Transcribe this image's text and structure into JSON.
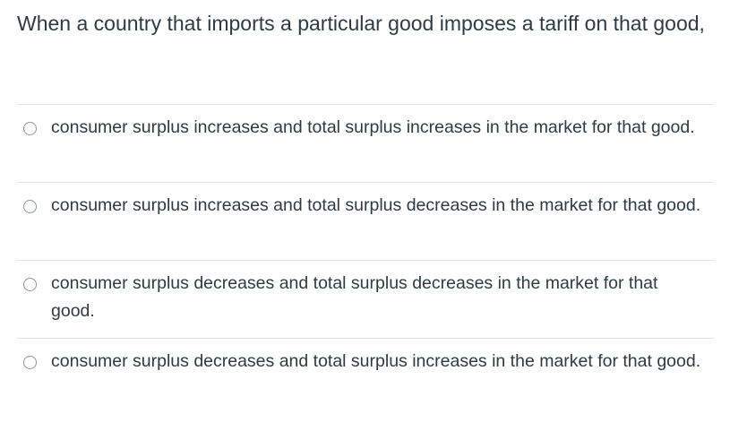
{
  "question": {
    "text": "When a country that imports a particular good imposes a tariff on that good,"
  },
  "answers": [
    {
      "label": "consumer surplus increases and total surplus increases in the market for that good."
    },
    {
      "label": "consumer surplus increases and total surplus decreases in the market for that good."
    },
    {
      "label": "consumer surplus decreases and total surplus decreases in the market for that good."
    },
    {
      "label": "consumer surplus decreases and total surplus increases in the market for that good."
    }
  ],
  "colors": {
    "text": "#2d3b45",
    "divider": "#dfe3e6",
    "radio_border": "#8b969e"
  }
}
